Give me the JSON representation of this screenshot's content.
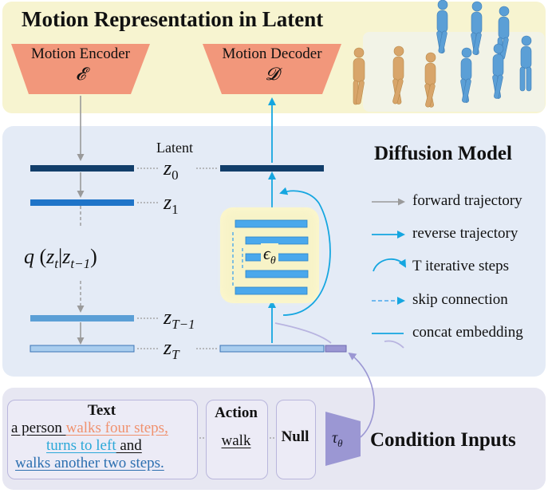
{
  "top": {
    "title": "Motion Representation in Latent",
    "encoder": {
      "label": "Motion Encoder",
      "symbol": "𝓔"
    },
    "decoder": {
      "label": "Motion Decoder",
      "symbol": "𝓓"
    }
  },
  "middle": {
    "title": "Diffusion Model",
    "latent_label": "Latent",
    "z0": {
      "base": "z",
      "sub": "0"
    },
    "z1": {
      "base": "z",
      "sub": "1"
    },
    "zT1": {
      "base": "z",
      "sub": "T−1"
    },
    "zT": {
      "base": "z",
      "sub": "T"
    },
    "q_formula": {
      "q": "q",
      "z": "z",
      "sub_t": "t",
      "sub_t1": "t−1"
    },
    "eps": {
      "base": "ϵ",
      "sub": "θ"
    },
    "legend": [
      {
        "label": "forward trajectory"
      },
      {
        "label": "reverse trajectory"
      },
      {
        "label": "T iterative steps"
      },
      {
        "label": "skip connection"
      },
      {
        "label": "concat embedding"
      }
    ]
  },
  "bottom": {
    "title": "Condition Inputs",
    "text_box": {
      "title": "Text",
      "line1_a": "a person ",
      "line1_b": "walks four steps,",
      "line2_a": "turns to left",
      "line2_b": " and",
      "line3": "walks another two steps."
    },
    "action_box": {
      "title": "Action",
      "value": "walk"
    },
    "null_box": {
      "title": "Null"
    },
    "tau": {
      "base": "τ",
      "sub": "θ"
    }
  },
  "colors": {
    "encoder_fill": "#f2977b",
    "dark_bar": "#123e6a",
    "mid_bar": "#1f74c8",
    "light_bar": "#a9cdee",
    "cyan_arrow": "#15a6e0",
    "gray_arrow": "#9a9a9a",
    "highlight_orange": "#f0916e",
    "highlight_cyan": "#2ba8d8",
    "highlight_blue": "#2c6fb0",
    "tau_fill": "#9b97d3",
    "eps_bg": "#f7f3c7"
  },
  "icons": [
    "human-figures-icon"
  ]
}
